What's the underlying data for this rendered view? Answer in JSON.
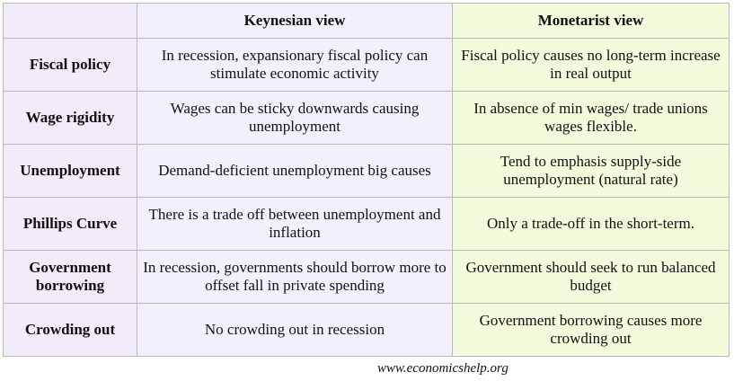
{
  "table": {
    "headers": [
      "",
      "Keynesian view",
      "Monetarist view"
    ],
    "rows": [
      {
        "label": "Fiscal policy",
        "keynesian": "In recession, expansionary fiscal policy can stimulate economic activity",
        "monetarist": "Fiscal policy causes no long-term increase in real output"
      },
      {
        "label": "Wage rigidity",
        "keynesian": "Wages can be sticky downwards causing unemployment",
        "monetarist": "In absence of min wages/ trade unions wages flexible."
      },
      {
        "label": "Unemployment",
        "keynesian": "Demand-deficient unemployment big causes",
        "monetarist": "Tend to emphasis supply-side unemployment (natural rate)"
      },
      {
        "label": "Phillips Curve",
        "keynesian": "There is a trade off between unemployment and inflation",
        "monetarist": "Only a trade-off in the short-term."
      },
      {
        "label": "Government borrowing",
        "keynesian": "In recession, governments should borrow more to offset fall in private spending",
        "monetarist": "Government should seek to run balanced budget"
      },
      {
        "label": "Crowding out",
        "keynesian": "No crowding out in recession",
        "monetarist": "Government borrowing causes more crowding out"
      }
    ]
  },
  "credit": "www.economicshelp.org",
  "colors": {
    "label_bg": "#f1ebfa",
    "keynesian_bg": "#f4f0fb",
    "monetarist_bg": "#f2fbdc"
  }
}
